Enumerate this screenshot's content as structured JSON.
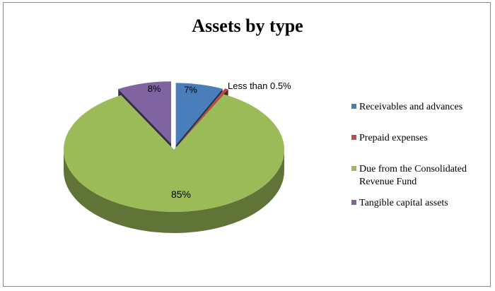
{
  "chart_data": {
    "type": "pie",
    "title": "Assets by type",
    "slices": [
      {
        "name": "Receivables and advances",
        "value": 7,
        "label": "7%",
        "color": "#4a7ebb"
      },
      {
        "name": "Prepaid expenses",
        "value": 0.5,
        "label": "Less than 0.5%",
        "color": "#be4b48"
      },
      {
        "name": "Due from the Consolidated Revenue Fund",
        "value": 85,
        "label": "85%",
        "color": "#9bbb59"
      },
      {
        "name": "Tangible capital assets",
        "value": 8,
        "label": "8%",
        "color": "#8064a2"
      }
    ],
    "legend": {
      "position": "right",
      "items": [
        {
          "lines": [
            "Receivables and advances"
          ],
          "color": "#4a7ebb"
        },
        {
          "lines": [
            "Prepaid expenses"
          ],
          "color": "#be4b48"
        },
        {
          "lines": [
            "Due from the Consolidated",
            "Revenue Fund"
          ],
          "color": "#9bbb59"
        },
        {
          "lines": [
            "Tangible capital assets"
          ],
          "color": "#8064a2"
        }
      ]
    },
    "style": "3d-pie"
  }
}
